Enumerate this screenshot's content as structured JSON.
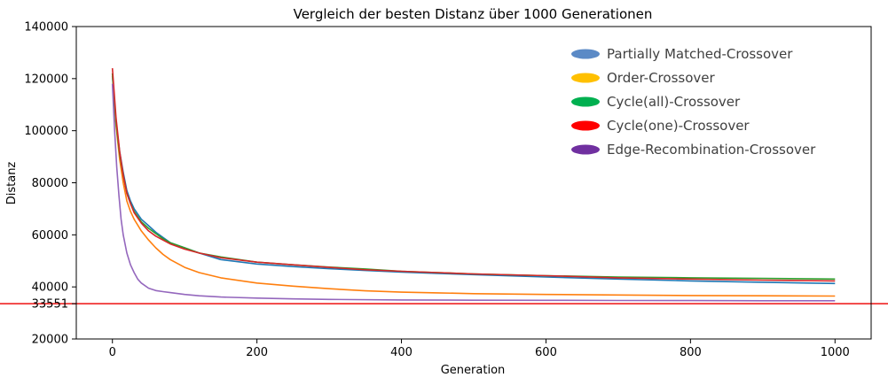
{
  "chart_data": {
    "type": "line",
    "title": "Vergleich der besten Distanz über 1000 Generationen",
    "xlabel": "Generation",
    "ylabel": "Distanz",
    "xlim": [
      -50,
      1050
    ],
    "ylim": [
      20000,
      140000
    ],
    "xticks": [
      0,
      200,
      400,
      600,
      800,
      1000
    ],
    "yticks": [
      20000,
      33551,
      40000,
      60000,
      80000,
      100000,
      120000,
      140000
    ],
    "grid": false,
    "legend_position": "top-right",
    "reference_line": {
      "y": 33551,
      "color": "#ee1111"
    },
    "series": [
      {
        "name": "Partially Matched-Crossover",
        "color": "#1f77b4",
        "legend_color": "#5b8ac6",
        "x": [
          0,
          5,
          10,
          15,
          20,
          25,
          30,
          40,
          50,
          60,
          70,
          80,
          100,
          120,
          150,
          200,
          250,
          300,
          350,
          400,
          450,
          500,
          600,
          700,
          800,
          900,
          1000
        ],
        "y": [
          121000,
          103000,
          92000,
          84000,
          77000,
          73000,
          70000,
          66000,
          63500,
          61000,
          59000,
          57000,
          55000,
          53000,
          50500,
          48800,
          47800,
          47000,
          46300,
          45700,
          45200,
          44700,
          43800,
          43000,
          42300,
          41800,
          41300
        ]
      },
      {
        "name": "Order-Crossover",
        "color": "#ff7f0e",
        "legend_color": "#ffc000",
        "x": [
          0,
          5,
          10,
          15,
          20,
          25,
          30,
          40,
          50,
          60,
          70,
          80,
          100,
          120,
          150,
          200,
          250,
          300,
          350,
          400,
          450,
          500,
          600,
          700,
          800,
          900,
          1000
        ],
        "y": [
          122000,
          102000,
          89000,
          80000,
          73000,
          69000,
          66000,
          61500,
          58000,
          55000,
          52500,
          50500,
          47500,
          45500,
          43500,
          41500,
          40300,
          39300,
          38500,
          38000,
          37700,
          37400,
          37100,
          36900,
          36700,
          36600,
          36500
        ]
      },
      {
        "name": "Cycle(all)-Crossover",
        "color": "#2ca02c",
        "legend_color": "#00b050",
        "x": [
          0,
          5,
          10,
          15,
          20,
          25,
          30,
          40,
          50,
          60,
          70,
          80,
          100,
          120,
          150,
          200,
          250,
          300,
          350,
          400,
          450,
          500,
          600,
          700,
          800,
          900,
          1000
        ],
        "y": [
          122000,
          103000,
          91000,
          83000,
          76000,
          72000,
          69000,
          65000,
          62500,
          60500,
          58500,
          57000,
          55000,
          53000,
          51500,
          49500,
          48500,
          47600,
          46900,
          46000,
          45500,
          45000,
          44300,
          43800,
          43500,
          43300,
          43000
        ]
      },
      {
        "name": "Cycle(one)-Crossover",
        "color": "#d62728",
        "legend_color": "#ff0000",
        "x": [
          0,
          5,
          10,
          15,
          20,
          25,
          30,
          40,
          50,
          60,
          70,
          80,
          100,
          120,
          150,
          200,
          250,
          300,
          350,
          400,
          450,
          500,
          600,
          700,
          800,
          900,
          1000
        ],
        "y": [
          124000,
          105000,
          92000,
          83000,
          76000,
          72000,
          68500,
          64500,
          61500,
          59500,
          58000,
          56500,
          54500,
          53000,
          51200,
          49500,
          48500,
          47500,
          46600,
          46000,
          45500,
          45000,
          44300,
          43500,
          43000,
          42600,
          42300
        ]
      },
      {
        "name": "Edge-Recombination-Crossover",
        "color": "#9467bd",
        "legend_color": "#7030a0",
        "x": [
          0,
          3,
          6,
          9,
          12,
          15,
          20,
          25,
          30,
          35,
          40,
          50,
          60,
          70,
          80,
          100,
          120,
          150,
          200,
          250,
          300,
          400,
          500,
          600,
          700,
          800,
          900,
          1000
        ],
        "y": [
          118000,
          100000,
          86000,
          75000,
          66000,
          60000,
          53000,
          48500,
          45500,
          43000,
          41500,
          39500,
          38600,
          38200,
          37800,
          37100,
          36600,
          36100,
          35700,
          35400,
          35200,
          35000,
          34900,
          34850,
          34800,
          34750,
          34700,
          34700
        ]
      }
    ]
  }
}
